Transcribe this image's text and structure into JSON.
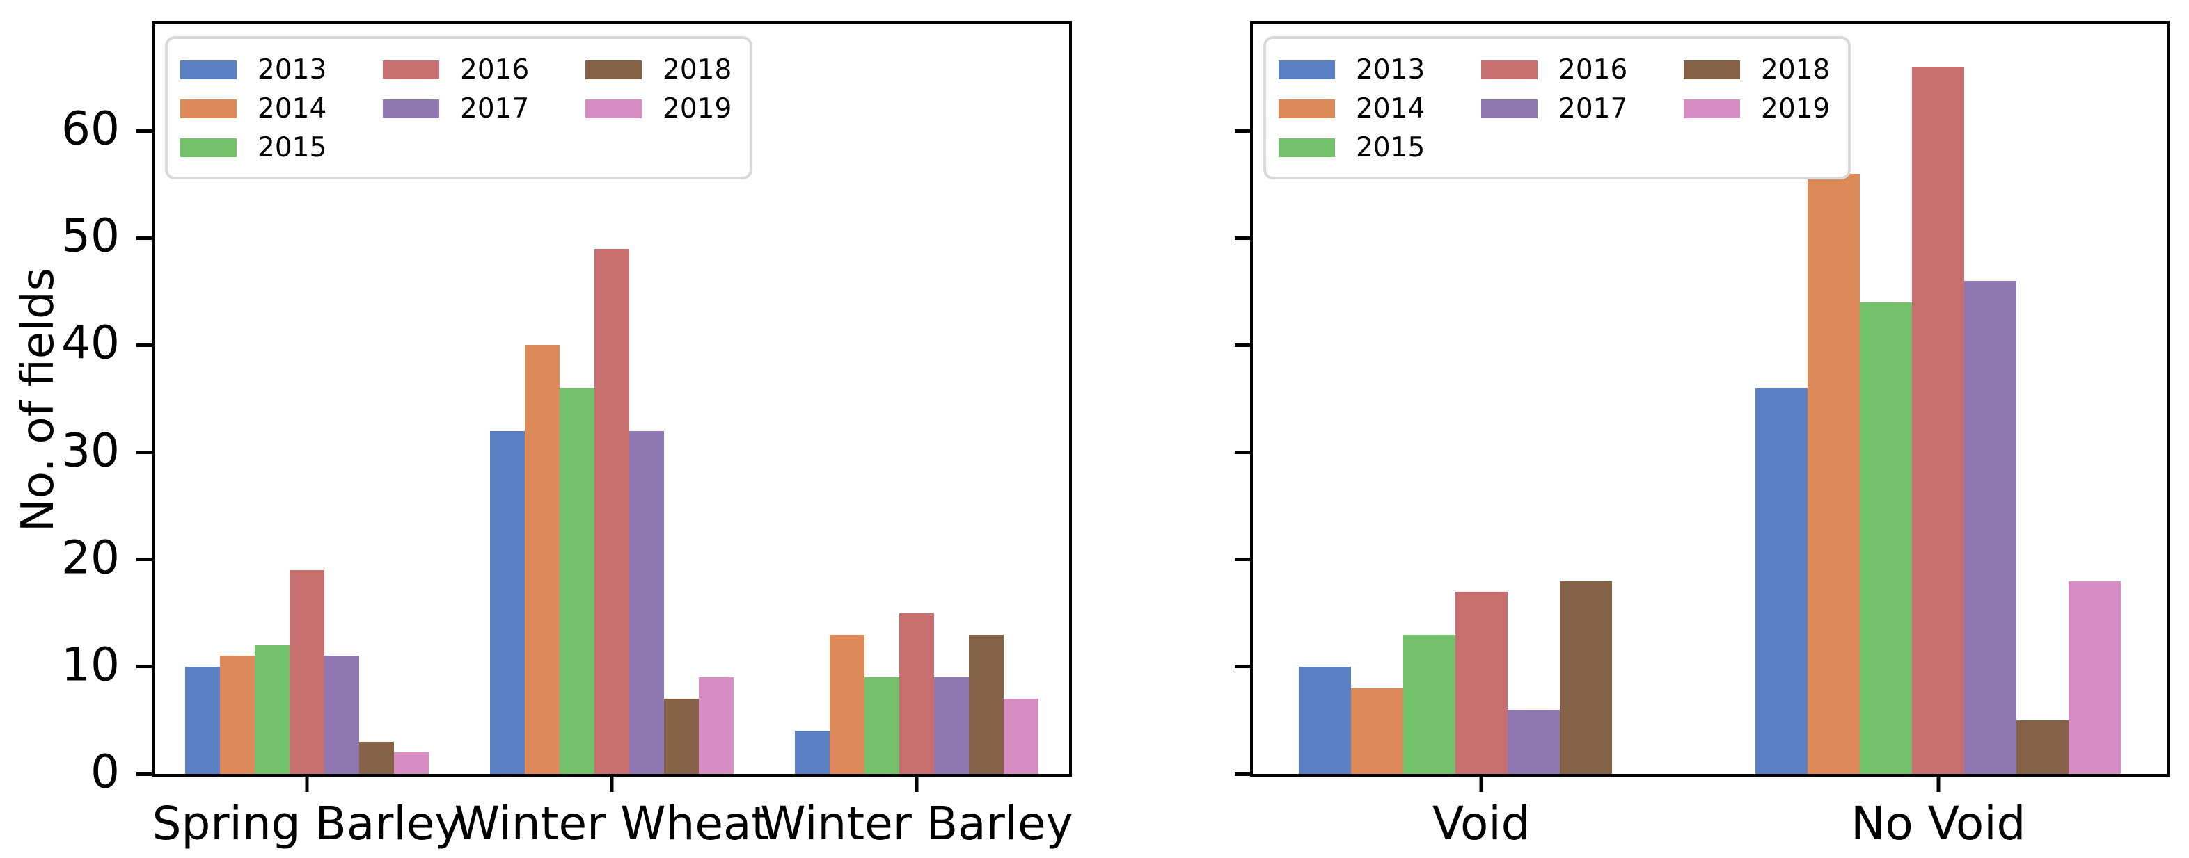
{
  "figure": {
    "ylabel": "No. of fields",
    "background_color": "#ffffff",
    "spine_color": "#000000",
    "legend_border_color": "#d9d9d9",
    "years": [
      "2013",
      "2014",
      "2015",
      "2016",
      "2017",
      "2018",
      "2019"
    ],
    "series_colors": {
      "2013": "#5b7fc3",
      "2014": "#dc8a58",
      "2015": "#73c16b",
      "2016": "#c76e6e",
      "2017": "#8f78b2",
      "2018": "#856245",
      "2019": "#d78cc4"
    }
  },
  "chart_data": [
    {
      "type": "bar",
      "title": "",
      "categories": [
        "Spring Barley",
        "Winter Wheat",
        "Winter Barley"
      ],
      "series": [
        {
          "name": "2013",
          "values": [
            10,
            32,
            4
          ]
        },
        {
          "name": "2014",
          "values": [
            11,
            40,
            13
          ]
        },
        {
          "name": "2015",
          "values": [
            12,
            36,
            9
          ]
        },
        {
          "name": "2016",
          "values": [
            19,
            49,
            15
          ]
        },
        {
          "name": "2017",
          "values": [
            11,
            32,
            9
          ]
        },
        {
          "name": "2018",
          "values": [
            3,
            7,
            13
          ]
        },
        {
          "name": "2019",
          "values": [
            2,
            9,
            7
          ]
        }
      ],
      "xlabel": "",
      "ylabel": "No. of fields",
      "ylim": [
        0,
        70
      ],
      "yticks": [
        0,
        10,
        20,
        30,
        40,
        50,
        60
      ],
      "ytick_labels_visible": true,
      "grid": false,
      "legend_position": "upper left",
      "bar_group_width_fraction": 0.8
    },
    {
      "type": "bar",
      "title": "",
      "categories": [
        "Void",
        "No Void"
      ],
      "series": [
        {
          "name": "2013",
          "values": [
            10,
            36
          ]
        },
        {
          "name": "2014",
          "values": [
            8,
            56
          ]
        },
        {
          "name": "2015",
          "values": [
            13,
            44
          ]
        },
        {
          "name": "2016",
          "values": [
            17,
            66
          ]
        },
        {
          "name": "2017",
          "values": [
            6,
            46
          ]
        },
        {
          "name": "2018",
          "values": [
            18,
            5
          ]
        },
        {
          "name": "2019",
          "values": [
            0,
            18
          ]
        }
      ],
      "xlabel": "",
      "ylabel": "",
      "ylim": [
        0,
        70
      ],
      "yticks": [
        0,
        10,
        20,
        30,
        40,
        50,
        60
      ],
      "ytick_labels_visible": false,
      "grid": false,
      "legend_position": "upper left",
      "bar_group_width_fraction": 0.8
    }
  ]
}
